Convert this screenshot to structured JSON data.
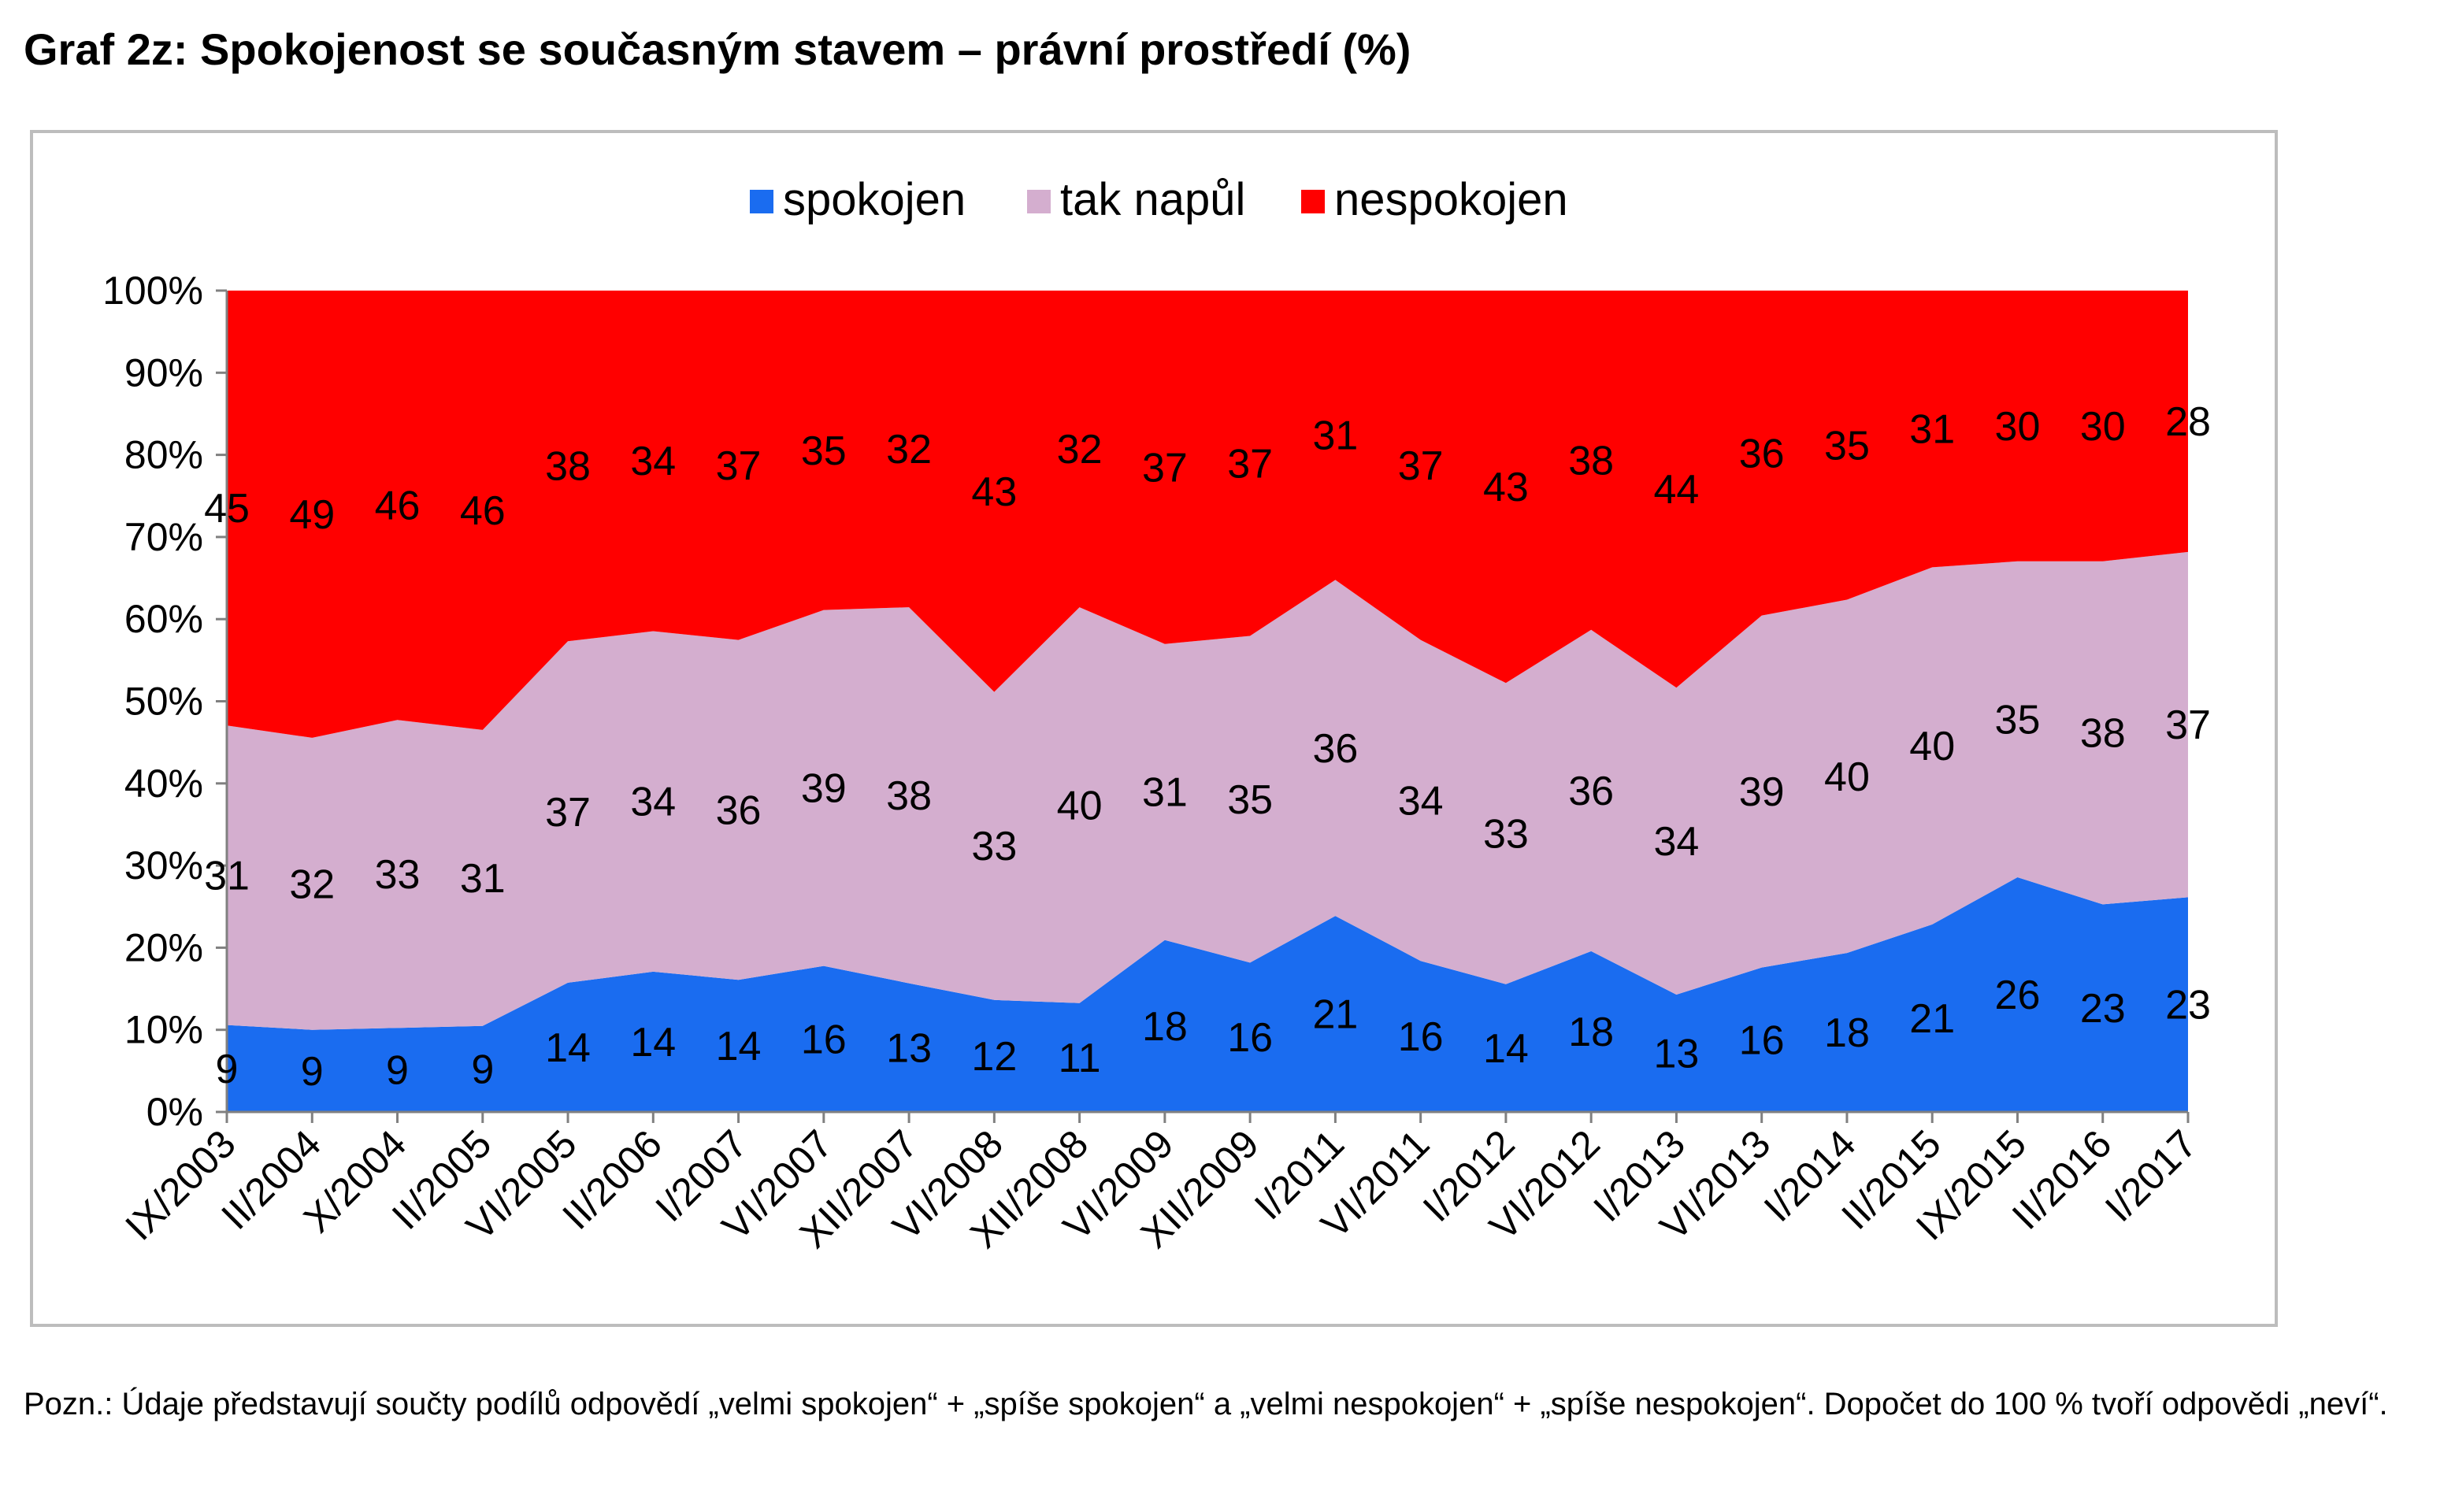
{
  "page_title": "Graf 2z: Spokojenost se současným stavem – právní prostředí (%)",
  "note": "Pozn.: Údaje představují součty podílů odpovědí „velmi spokojen“ + „spíše spokojen“ a „velmi nespokojen“ + „spíše nespokojen“. Dopočet do 100 % tvoří odpovědi „neví“.",
  "chart_data": {
    "type": "area",
    "stacked": "percent",
    "categories": [
      "IX/2003",
      "II/2004",
      "X/2004",
      "II/2005",
      "VI/2005",
      "II/2006",
      "I/2007",
      "VI/2007",
      "XII/2007",
      "VI/2008",
      "XII/2008",
      "VI/2009",
      "XII/2009",
      "I/2011",
      "VI/2011",
      "I/2012",
      "VI/2012",
      "I/2013",
      "VI/2013",
      "I/2014",
      "II/2015",
      "IX/2015",
      "II/2016",
      "I/2017"
    ],
    "series": [
      {
        "name": "spokojen",
        "color": "#1a6cf0",
        "values": [
          9,
          9,
          9,
          9,
          14,
          14,
          14,
          16,
          13,
          12,
          11,
          18,
          16,
          21,
          16,
          14,
          18,
          13,
          16,
          18,
          21,
          26,
          23,
          23
        ]
      },
      {
        "name": "tak napůl",
        "color": "#d4aecf",
        "values": [
          31,
          32,
          33,
          31,
          37,
          34,
          36,
          39,
          38,
          33,
          40,
          31,
          35,
          36,
          34,
          33,
          36,
          34,
          39,
          40,
          40,
          35,
          38,
          37
        ]
      },
      {
        "name": "nespokojen",
        "color": "#ff0000",
        "values": [
          45,
          49,
          46,
          46,
          38,
          34,
          37,
          35,
          32,
          43,
          32,
          37,
          37,
          31,
          37,
          43,
          38,
          44,
          36,
          35,
          31,
          30,
          30,
          28
        ]
      }
    ],
    "yticks": [
      "0%",
      "10%",
      "20%",
      "30%",
      "40%",
      "50%",
      "60%",
      "70%",
      "80%",
      "90%",
      "100%"
    ],
    "ylim": [
      0,
      100
    ],
    "legend_position": "top-center",
    "grid": false
  }
}
